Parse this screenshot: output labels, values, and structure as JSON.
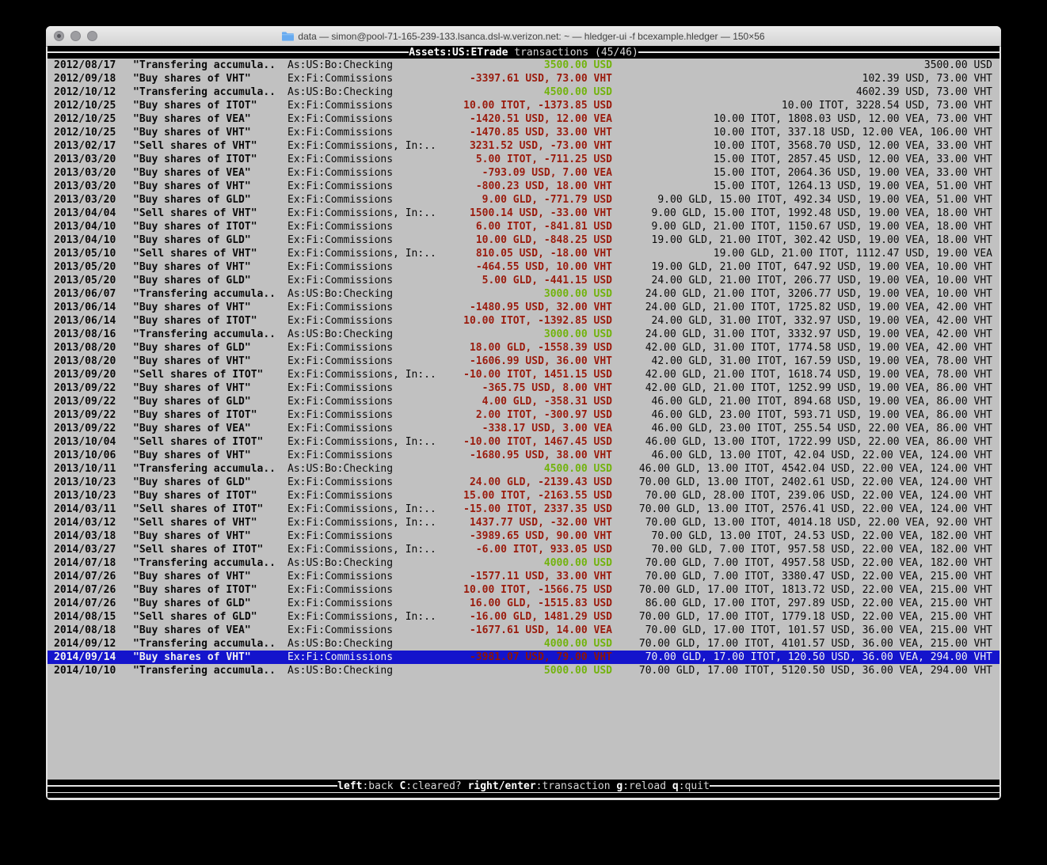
{
  "window": {
    "title": "data — simon@pool-71-165-239-133.lsanca.dsl-w.verizon.net: ~ — hledger-ui -f bcexample.hledger — 150×56",
    "buttons": [
      "close",
      "minimize",
      "zoom"
    ]
  },
  "header": {
    "account": "Assets:US:ETrade",
    "suffix": " transactions (45/46)"
  },
  "footer": {
    "hints": [
      {
        "key": "left",
        "label": "back"
      },
      {
        "key": "C",
        "label": "cleared?"
      },
      {
        "key": "right/enter",
        "label": "transaction"
      },
      {
        "key": "g",
        "label": "reload"
      },
      {
        "key": "q",
        "label": "quit"
      }
    ]
  },
  "colors": {
    "terminal_bg": "#c1c1c1",
    "bar_bg": "#000000",
    "bar_fg": "#e6e6e6",
    "amount_negative": "#9a1b0d",
    "amount_positive": "#72b30d",
    "selection_bg": "#1414cc",
    "selection_fg": "#f2f2f2"
  },
  "transactions": [
    {
      "date": "2012/08/17",
      "description": "\"Transfering accumula..",
      "accounts": "As:US:Bo:Checking",
      "amount": "3500.00 USD",
      "amount_color": "green",
      "balance": "3500.00 USD"
    },
    {
      "date": "2012/09/18",
      "description": "\"Buy shares of VHT\"",
      "accounts": "Ex:Fi:Commissions",
      "amount": "-3397.61 USD, 73.00 VHT",
      "amount_color": "red",
      "balance": "102.39 USD, 73.00 VHT"
    },
    {
      "date": "2012/10/12",
      "description": "\"Transfering accumula..",
      "accounts": "As:US:Bo:Checking",
      "amount": "4500.00 USD",
      "amount_color": "green",
      "balance": "4602.39 USD, 73.00 VHT"
    },
    {
      "date": "2012/10/25",
      "description": "\"Buy shares of ITOT\"",
      "accounts": "Ex:Fi:Commissions",
      "amount": "10.00 ITOT, -1373.85 USD",
      "amount_color": "red",
      "balance": "10.00 ITOT, 3228.54 USD, 73.00 VHT"
    },
    {
      "date": "2012/10/25",
      "description": "\"Buy shares of VEA\"",
      "accounts": "Ex:Fi:Commissions",
      "amount": "-1420.51 USD, 12.00 VEA",
      "amount_color": "red",
      "balance": "10.00 ITOT, 1808.03 USD, 12.00 VEA, 73.00 VHT"
    },
    {
      "date": "2012/10/25",
      "description": "\"Buy shares of VHT\"",
      "accounts": "Ex:Fi:Commissions",
      "amount": "-1470.85 USD, 33.00 VHT",
      "amount_color": "red",
      "balance": "10.00 ITOT, 337.18 USD, 12.00 VEA, 106.00 VHT"
    },
    {
      "date": "2013/02/17",
      "description": "\"Sell shares of VHT\"",
      "accounts": "Ex:Fi:Commissions, In:..",
      "amount": "3231.52 USD, -73.00 VHT",
      "amount_color": "red",
      "balance": "10.00 ITOT, 3568.70 USD, 12.00 VEA, 33.00 VHT"
    },
    {
      "date": "2013/03/20",
      "description": "\"Buy shares of ITOT\"",
      "accounts": "Ex:Fi:Commissions",
      "amount": "5.00 ITOT, -711.25 USD",
      "amount_color": "red",
      "balance": "15.00 ITOT, 2857.45 USD, 12.00 VEA, 33.00 VHT"
    },
    {
      "date": "2013/03/20",
      "description": "\"Buy shares of VEA\"",
      "accounts": "Ex:Fi:Commissions",
      "amount": "-793.09 USD, 7.00 VEA",
      "amount_color": "red",
      "balance": "15.00 ITOT, 2064.36 USD, 19.00 VEA, 33.00 VHT"
    },
    {
      "date": "2013/03/20",
      "description": "\"Buy shares of VHT\"",
      "accounts": "Ex:Fi:Commissions",
      "amount": "-800.23 USD, 18.00 VHT",
      "amount_color": "red",
      "balance": "15.00 ITOT, 1264.13 USD, 19.00 VEA, 51.00 VHT"
    },
    {
      "date": "2013/03/20",
      "description": "\"Buy shares of GLD\"",
      "accounts": "Ex:Fi:Commissions",
      "amount": "9.00 GLD, -771.79 USD",
      "amount_color": "red",
      "balance": "9.00 GLD, 15.00 ITOT, 492.34 USD, 19.00 VEA, 51.00 VHT"
    },
    {
      "date": "2013/04/04",
      "description": "\"Sell shares of VHT\"",
      "accounts": "Ex:Fi:Commissions, In:..",
      "amount": "1500.14 USD, -33.00 VHT",
      "amount_color": "red",
      "balance": "9.00 GLD, 15.00 ITOT, 1992.48 USD, 19.00 VEA, 18.00 VHT"
    },
    {
      "date": "2013/04/10",
      "description": "\"Buy shares of ITOT\"",
      "accounts": "Ex:Fi:Commissions",
      "amount": "6.00 ITOT, -841.81 USD",
      "amount_color": "red",
      "balance": "9.00 GLD, 21.00 ITOT, 1150.67 USD, 19.00 VEA, 18.00 VHT"
    },
    {
      "date": "2013/04/10",
      "description": "\"Buy shares of GLD\"",
      "accounts": "Ex:Fi:Commissions",
      "amount": "10.00 GLD, -848.25 USD",
      "amount_color": "red",
      "balance": "19.00 GLD, 21.00 ITOT, 302.42 USD, 19.00 VEA, 18.00 VHT"
    },
    {
      "date": "2013/05/10",
      "description": "\"Sell shares of VHT\"",
      "accounts": "Ex:Fi:Commissions, In:..",
      "amount": "810.05 USD, -18.00 VHT",
      "amount_color": "red",
      "balance": "19.00 GLD, 21.00 ITOT, 1112.47 USD, 19.00 VEA"
    },
    {
      "date": "2013/05/20",
      "description": "\"Buy shares of VHT\"",
      "accounts": "Ex:Fi:Commissions",
      "amount": "-464.55 USD, 10.00 VHT",
      "amount_color": "red",
      "balance": "19.00 GLD, 21.00 ITOT, 647.92 USD, 19.00 VEA, 10.00 VHT"
    },
    {
      "date": "2013/05/20",
      "description": "\"Buy shares of GLD\"",
      "accounts": "Ex:Fi:Commissions",
      "amount": "5.00 GLD, -441.15 USD",
      "amount_color": "red",
      "balance": "24.00 GLD, 21.00 ITOT, 206.77 USD, 19.00 VEA, 10.00 VHT"
    },
    {
      "date": "2013/06/07",
      "description": "\"Transfering accumula..",
      "accounts": "As:US:Bo:Checking",
      "amount": "3000.00 USD",
      "amount_color": "green",
      "balance": "24.00 GLD, 21.00 ITOT, 3206.77 USD, 19.00 VEA, 10.00 VHT"
    },
    {
      "date": "2013/06/14",
      "description": "\"Buy shares of VHT\"",
      "accounts": "Ex:Fi:Commissions",
      "amount": "-1480.95 USD, 32.00 VHT",
      "amount_color": "red",
      "balance": "24.00 GLD, 21.00 ITOT, 1725.82 USD, 19.00 VEA, 42.00 VHT"
    },
    {
      "date": "2013/06/14",
      "description": "\"Buy shares of ITOT\"",
      "accounts": "Ex:Fi:Commissions",
      "amount": "10.00 ITOT, -1392.85 USD",
      "amount_color": "red",
      "balance": "24.00 GLD, 31.00 ITOT, 332.97 USD, 19.00 VEA, 42.00 VHT"
    },
    {
      "date": "2013/08/16",
      "description": "\"Transfering accumula..",
      "accounts": "As:US:Bo:Checking",
      "amount": "3000.00 USD",
      "amount_color": "green",
      "balance": "24.00 GLD, 31.00 ITOT, 3332.97 USD, 19.00 VEA, 42.00 VHT"
    },
    {
      "date": "2013/08/20",
      "description": "\"Buy shares of GLD\"",
      "accounts": "Ex:Fi:Commissions",
      "amount": "18.00 GLD, -1558.39 USD",
      "amount_color": "red",
      "balance": "42.00 GLD, 31.00 ITOT, 1774.58 USD, 19.00 VEA, 42.00 VHT"
    },
    {
      "date": "2013/08/20",
      "description": "\"Buy shares of VHT\"",
      "accounts": "Ex:Fi:Commissions",
      "amount": "-1606.99 USD, 36.00 VHT",
      "amount_color": "red",
      "balance": "42.00 GLD, 31.00 ITOT, 167.59 USD, 19.00 VEA, 78.00 VHT"
    },
    {
      "date": "2013/09/20",
      "description": "\"Sell shares of ITOT\"",
      "accounts": "Ex:Fi:Commissions, In:..",
      "amount": "-10.00 ITOT, 1451.15 USD",
      "amount_color": "red",
      "balance": "42.00 GLD, 21.00 ITOT, 1618.74 USD, 19.00 VEA, 78.00 VHT"
    },
    {
      "date": "2013/09/22",
      "description": "\"Buy shares of VHT\"",
      "accounts": "Ex:Fi:Commissions",
      "amount": "-365.75 USD, 8.00 VHT",
      "amount_color": "red",
      "balance": "42.00 GLD, 21.00 ITOT, 1252.99 USD, 19.00 VEA, 86.00 VHT"
    },
    {
      "date": "2013/09/22",
      "description": "\"Buy shares of GLD\"",
      "accounts": "Ex:Fi:Commissions",
      "amount": "4.00 GLD, -358.31 USD",
      "amount_color": "red",
      "balance": "46.00 GLD, 21.00 ITOT, 894.68 USD, 19.00 VEA, 86.00 VHT"
    },
    {
      "date": "2013/09/22",
      "description": "\"Buy shares of ITOT\"",
      "accounts": "Ex:Fi:Commissions",
      "amount": "2.00 ITOT, -300.97 USD",
      "amount_color": "red",
      "balance": "46.00 GLD, 23.00 ITOT, 593.71 USD, 19.00 VEA, 86.00 VHT"
    },
    {
      "date": "2013/09/22",
      "description": "\"Buy shares of VEA\"",
      "accounts": "Ex:Fi:Commissions",
      "amount": "-338.17 USD, 3.00 VEA",
      "amount_color": "red",
      "balance": "46.00 GLD, 23.00 ITOT, 255.54 USD, 22.00 VEA, 86.00 VHT"
    },
    {
      "date": "2013/10/04",
      "description": "\"Sell shares of ITOT\"",
      "accounts": "Ex:Fi:Commissions, In:..",
      "amount": "-10.00 ITOT, 1467.45 USD",
      "amount_color": "red",
      "balance": "46.00 GLD, 13.00 ITOT, 1722.99 USD, 22.00 VEA, 86.00 VHT"
    },
    {
      "date": "2013/10/06",
      "description": "\"Buy shares of VHT\"",
      "accounts": "Ex:Fi:Commissions",
      "amount": "-1680.95 USD, 38.00 VHT",
      "amount_color": "red",
      "balance": "46.00 GLD, 13.00 ITOT, 42.04 USD, 22.00 VEA, 124.00 VHT"
    },
    {
      "date": "2013/10/11",
      "description": "\"Transfering accumula..",
      "accounts": "As:US:Bo:Checking",
      "amount": "4500.00 USD",
      "amount_color": "green",
      "balance": "46.00 GLD, 13.00 ITOT, 4542.04 USD, 22.00 VEA, 124.00 VHT"
    },
    {
      "date": "2013/10/23",
      "description": "\"Buy shares of GLD\"",
      "accounts": "Ex:Fi:Commissions",
      "amount": "24.00 GLD, -2139.43 USD",
      "amount_color": "red",
      "balance": "70.00 GLD, 13.00 ITOT, 2402.61 USD, 22.00 VEA, 124.00 VHT"
    },
    {
      "date": "2013/10/23",
      "description": "\"Buy shares of ITOT\"",
      "accounts": "Ex:Fi:Commissions",
      "amount": "15.00 ITOT, -2163.55 USD",
      "amount_color": "red",
      "balance": "70.00 GLD, 28.00 ITOT, 239.06 USD, 22.00 VEA, 124.00 VHT"
    },
    {
      "date": "2014/03/11",
      "description": "\"Sell shares of ITOT\"",
      "accounts": "Ex:Fi:Commissions, In:..",
      "amount": "-15.00 ITOT, 2337.35 USD",
      "amount_color": "red",
      "balance": "70.00 GLD, 13.00 ITOT, 2576.41 USD, 22.00 VEA, 124.00 VHT"
    },
    {
      "date": "2014/03/12",
      "description": "\"Sell shares of VHT\"",
      "accounts": "Ex:Fi:Commissions, In:..",
      "amount": "1437.77 USD, -32.00 VHT",
      "amount_color": "red",
      "balance": "70.00 GLD, 13.00 ITOT, 4014.18 USD, 22.00 VEA, 92.00 VHT"
    },
    {
      "date": "2014/03/18",
      "description": "\"Buy shares of VHT\"",
      "accounts": "Ex:Fi:Commissions",
      "amount": "-3989.65 USD, 90.00 VHT",
      "amount_color": "red",
      "balance": "70.00 GLD, 13.00 ITOT, 24.53 USD, 22.00 VEA, 182.00 VHT"
    },
    {
      "date": "2014/03/27",
      "description": "\"Sell shares of ITOT\"",
      "accounts": "Ex:Fi:Commissions, In:..",
      "amount": "-6.00 ITOT, 933.05 USD",
      "amount_color": "red",
      "balance": "70.00 GLD, 7.00 ITOT, 957.58 USD, 22.00 VEA, 182.00 VHT"
    },
    {
      "date": "2014/07/18",
      "description": "\"Transfering accumula..",
      "accounts": "As:US:Bo:Checking",
      "amount": "4000.00 USD",
      "amount_color": "green",
      "balance": "70.00 GLD, 7.00 ITOT, 4957.58 USD, 22.00 VEA, 182.00 VHT"
    },
    {
      "date": "2014/07/26",
      "description": "\"Buy shares of VHT\"",
      "accounts": "Ex:Fi:Commissions",
      "amount": "-1577.11 USD, 33.00 VHT",
      "amount_color": "red",
      "balance": "70.00 GLD, 7.00 ITOT, 3380.47 USD, 22.00 VEA, 215.00 VHT"
    },
    {
      "date": "2014/07/26",
      "description": "\"Buy shares of ITOT\"",
      "accounts": "Ex:Fi:Commissions",
      "amount": "10.00 ITOT, -1566.75 USD",
      "amount_color": "red",
      "balance": "70.00 GLD, 17.00 ITOT, 1813.72 USD, 22.00 VEA, 215.00 VHT"
    },
    {
      "date": "2014/07/26",
      "description": "\"Buy shares of GLD\"",
      "accounts": "Ex:Fi:Commissions",
      "amount": "16.00 GLD, -1515.83 USD",
      "amount_color": "red",
      "balance": "86.00 GLD, 17.00 ITOT, 297.89 USD, 22.00 VEA, 215.00 VHT"
    },
    {
      "date": "2014/08/15",
      "description": "\"Sell shares of GLD\"",
      "accounts": "Ex:Fi:Commissions, In:..",
      "amount": "-16.00 GLD, 1481.29 USD",
      "amount_color": "red",
      "balance": "70.00 GLD, 17.00 ITOT, 1779.18 USD, 22.00 VEA, 215.00 VHT"
    },
    {
      "date": "2014/08/18",
      "description": "\"Buy shares of VEA\"",
      "accounts": "Ex:Fi:Commissions",
      "amount": "-1677.61 USD, 14.00 VEA",
      "amount_color": "red",
      "balance": "70.00 GLD, 17.00 ITOT, 101.57 USD, 36.00 VEA, 215.00 VHT"
    },
    {
      "date": "2014/09/12",
      "description": "\"Transfering accumula..",
      "accounts": "As:US:Bo:Checking",
      "amount": "4000.00 USD",
      "amount_color": "green",
      "balance": "70.00 GLD, 17.00 ITOT, 4101.57 USD, 36.00 VEA, 215.00 VHT"
    },
    {
      "date": "2014/09/14",
      "description": "\"Buy shares of VHT\"",
      "accounts": "Ex:Fi:Commissions",
      "amount": "-3981.07 USD, 79.00 VHT",
      "amount_color": "red",
      "balance": "70.00 GLD, 17.00 ITOT, 120.50 USD, 36.00 VEA, 294.00 VHT",
      "selected": true
    },
    {
      "date": "2014/10/10",
      "description": "\"Transfering accumula..",
      "accounts": "As:US:Bo:Checking",
      "amount": "5000.00 USD",
      "amount_color": "green",
      "balance": "70.00 GLD, 17.00 ITOT, 5120.50 USD, 36.00 VEA, 294.00 VHT"
    }
  ]
}
